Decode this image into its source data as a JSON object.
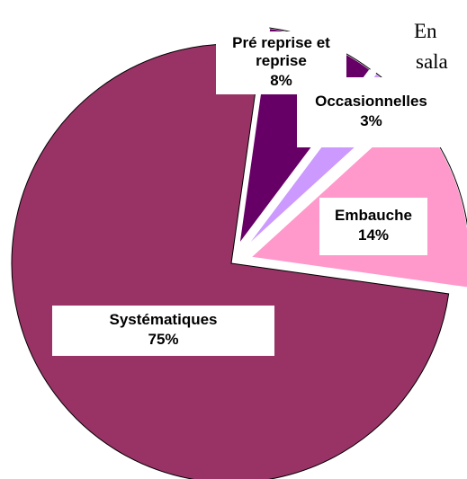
{
  "chart_data": {
    "type": "pie",
    "categories": [
      "Pré reprise et reprise",
      "Occasionnelles",
      "Embauche",
      "Systématiques"
    ],
    "values": [
      8,
      3,
      14,
      75
    ],
    "value_labels": [
      "8%",
      "3%",
      "14%",
      "75%"
    ],
    "colors": [
      "#660066",
      "#cc99ff",
      "#ff99cc",
      "#993366"
    ],
    "exploded": [
      true,
      true,
      true,
      false
    ],
    "annotations": [
      "En",
      "sala"
    ]
  }
}
